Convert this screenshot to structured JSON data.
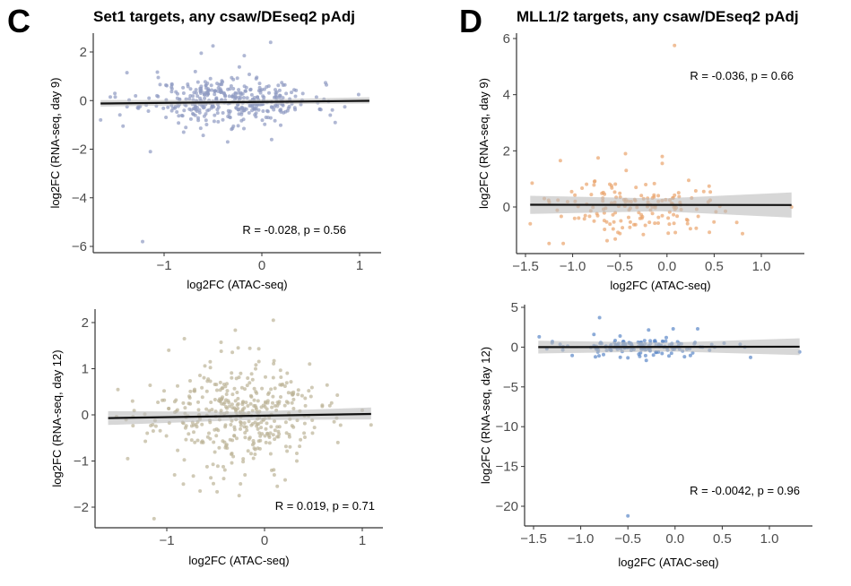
{
  "panels": [
    {
      "letter": "C",
      "title": "Set1 targets, any csaw/DEseq2 pAdj"
    },
    {
      "letter": "D",
      "title": "MLL1/2 targets, any csaw/DEseq2 pAdj"
    }
  ],
  "chart_data": [
    {
      "id": "C-top",
      "type": "scatter",
      "title": "Set1 targets, any csaw/DEseq2 pAdj",
      "xlabel": "log2FC (ATAC-seq)",
      "ylabel": "log2FC (RNA-seq, day 9)",
      "xlim": [
        -1.72,
        1.22
      ],
      "ylim": [
        -6.2,
        2.8
      ],
      "xticks": [
        -1,
        0,
        1
      ],
      "xtick_labels": [
        "−1",
        "0",
        "1"
      ],
      "yticks": [
        2,
        0,
        -2,
        -4,
        -6
      ],
      "ytick_labels": [
        "2",
        "0",
        "−2",
        "−4",
        "−6"
      ],
      "grid": false,
      "point_color": "#8f9ac2",
      "annotation": "R = -0.028, p = 0.56",
      "fit": {
        "x": [
          -1.65,
          1.1
        ],
        "y": [
          -0.12,
          -0.01
        ],
        "ci_start": [
          -0.25,
          0.02
        ],
        "ci_end": [
          -0.12,
          0.14
        ]
      },
      "cluster": {
        "n": 380,
        "seed": 11,
        "xmean": -0.32,
        "xsd": 0.42,
        "ysd": 0.52
      },
      "outliers": [
        [
          -1.22,
          -5.8
        ],
        [
          0.09,
          2.4
        ],
        [
          -0.5,
          2.25
        ],
        [
          -1.14,
          -2.1
        ],
        [
          -1.65,
          -0.8
        ],
        [
          -0.35,
          -1.7
        ],
        [
          0.1,
          -1.6
        ],
        [
          -1.38,
          1.15
        ],
        [
          -0.62,
          1.95
        ],
        [
          -0.18,
          1.85
        ],
        [
          -1.42,
          -1.05
        ],
        [
          -1.55,
          0.15
        ],
        [
          -1.5,
          0.15
        ],
        [
          0.75,
          -0.9
        ],
        [
          0.99,
          0.25
        ],
        [
          -1.06,
          0.95
        ],
        [
          -0.8,
          -1.3
        ],
        [
          0.7,
          -0.6
        ]
      ]
    },
    {
      "id": "C-bottom",
      "type": "scatter",
      "title": "",
      "xlabel": "log2FC (ATAC-seq)",
      "ylabel": "log2FC (RNA-seq, day 12)",
      "xlim": [
        -1.72,
        1.22
      ],
      "ylim": [
        -2.45,
        2.3
      ],
      "xticks": [
        -1,
        0,
        1
      ],
      "xtick_labels": [
        "−1",
        "0",
        "1"
      ],
      "yticks": [
        2,
        1,
        0,
        -1,
        -2
      ],
      "ytick_labels": [
        "2",
        "1",
        "0",
        "−1",
        "−2"
      ],
      "grid": false,
      "point_color": "#bcb397",
      "annotation": "R = 0.019, p = 0.71",
      "fit": {
        "x": [
          -1.6,
          1.09
        ],
        "y": [
          -0.07,
          0.02
        ],
        "ci_start": [
          -0.22,
          0.08
        ],
        "ci_end": [
          -0.1,
          0.16
        ]
      },
      "cluster": {
        "n": 400,
        "seed": 23,
        "xmean": -0.28,
        "xsd": 0.42,
        "ysd": 0.6
      },
      "outliers": [
        [
          -1.13,
          -2.25
        ],
        [
          0.09,
          2.05
        ],
        [
          -0.82,
          1.65
        ],
        [
          -0.27,
          1.45
        ],
        [
          -0.26,
          -1.75
        ],
        [
          -0.98,
          1.4
        ],
        [
          0.33,
          -1.0
        ],
        [
          1.09,
          -0.22
        ],
        [
          -1.4,
          -0.95
        ],
        [
          -1.5,
          0.55
        ],
        [
          -1.35,
          0.3
        ],
        [
          -0.92,
          -1.3
        ],
        [
          -0.2,
          -1.3
        ],
        [
          0.1,
          -1.3
        ],
        [
          0.13,
          -1.55
        ],
        [
          -0.66,
          -1.65
        ],
        [
          -0.83,
          -1.5
        ],
        [
          0.75,
          -0.6
        ],
        [
          1.0,
          0.1
        ]
      ]
    },
    {
      "id": "D-top",
      "type": "scatter",
      "title": "MLL1/2 targets, any csaw/DEseq2 pAdj",
      "xlabel": "log2FC (ATAC-seq)",
      "ylabel": "log2FC (RNA-seq, day 9)",
      "xlim": [
        -1.6,
        1.45
      ],
      "ylim": [
        -1.65,
        6.1
      ],
      "xticks": [
        -1.5,
        -1.0,
        -0.5,
        0.0,
        0.5,
        1.0
      ],
      "xtick_labels": [
        "−1.5",
        "−1.0",
        "−0.5",
        "0.0",
        "0.5",
        "1.0"
      ],
      "yticks": [
        6,
        4,
        2,
        0
      ],
      "ytick_labels": [
        "6",
        "4",
        "2",
        "0"
      ],
      "grid": false,
      "point_color": "#e9a46c",
      "annotation": "R = -0.036, p = 0.66",
      "fit": {
        "x": [
          -1.45,
          1.32
        ],
        "y": [
          0.08,
          0.07
        ],
        "ci_start": [
          -0.25,
          0.4
        ],
        "ci_end": [
          -0.38,
          0.52
        ]
      },
      "cluster": {
        "n": 150,
        "seed": 37,
        "xmean": -0.35,
        "xsd": 0.38,
        "ysd": 0.55
      },
      "outliers": [
        [
          0.08,
          5.75
        ],
        [
          -0.44,
          1.9
        ],
        [
          -0.05,
          1.8
        ],
        [
          -0.73,
          1.75
        ],
        [
          -1.13,
          1.65
        ],
        [
          -1.25,
          -1.3
        ],
        [
          -1.1,
          -1.3
        ],
        [
          0.8,
          -0.95
        ],
        [
          1.32,
          0.0
        ],
        [
          -1.45,
          -0.6
        ],
        [
          -1.43,
          0.85
        ],
        [
          0.45,
          -0.9
        ],
        [
          0.74,
          -0.55
        ],
        [
          0.23,
          0.95
        ],
        [
          0.39,
          0.55
        ],
        [
          0.62,
          -0.15
        ],
        [
          -1.3,
          0.3
        ],
        [
          -0.05,
          1.55
        ]
      ]
    },
    {
      "id": "D-bottom",
      "type": "scatter",
      "title": "",
      "xlabel": "log2FC (ATAC-seq)",
      "ylabel": "log2FC (RNA-seq, day 12)",
      "xlim": [
        -1.6,
        1.45
      ],
      "ylim": [
        -22.5,
        5.2
      ],
      "xticks": [
        -1.5,
        -1.0,
        -0.5,
        0.0,
        0.5,
        1.0
      ],
      "xtick_labels": [
        "−1.5",
        "−1.0",
        "−0.5",
        "0.0",
        "0.5",
        "1.0"
      ],
      "yticks": [
        5,
        0,
        -5,
        -10,
        -15,
        -20
      ],
      "ytick_labels": [
        "5",
        "0",
        "−5",
        "−10",
        "−15",
        "−20"
      ],
      "grid": false,
      "point_color": "#5b87c8",
      "annotation": "R = -0.0042, p = 0.96",
      "fit": {
        "x": [
          -1.45,
          1.32
        ],
        "y": [
          0.0,
          0.05
        ],
        "ci_start": [
          -0.8,
          0.8
        ],
        "ci_end": [
          -1.0,
          1.1
        ]
      },
      "cluster": {
        "n": 150,
        "seed": 53,
        "xmean": -0.35,
        "xsd": 0.38,
        "ysd": 0.6
      },
      "outliers": [
        [
          -0.5,
          -21.2
        ],
        [
          -0.8,
          3.7
        ],
        [
          -0.02,
          2.3
        ],
        [
          0.24,
          2.3
        ],
        [
          0.8,
          -1.3
        ],
        [
          1.32,
          -0.6
        ],
        [
          -1.44,
          1.3
        ],
        [
          -0.86,
          1.6
        ],
        [
          -0.28,
          2.15
        ],
        [
          -1.3,
          0.7
        ],
        [
          -1.09,
          -1.05
        ],
        [
          -0.5,
          -1.35
        ],
        [
          0.1,
          -1.2
        ],
        [
          0.52,
          0.5
        ],
        [
          0.74,
          0.0
        ]
      ]
    }
  ]
}
